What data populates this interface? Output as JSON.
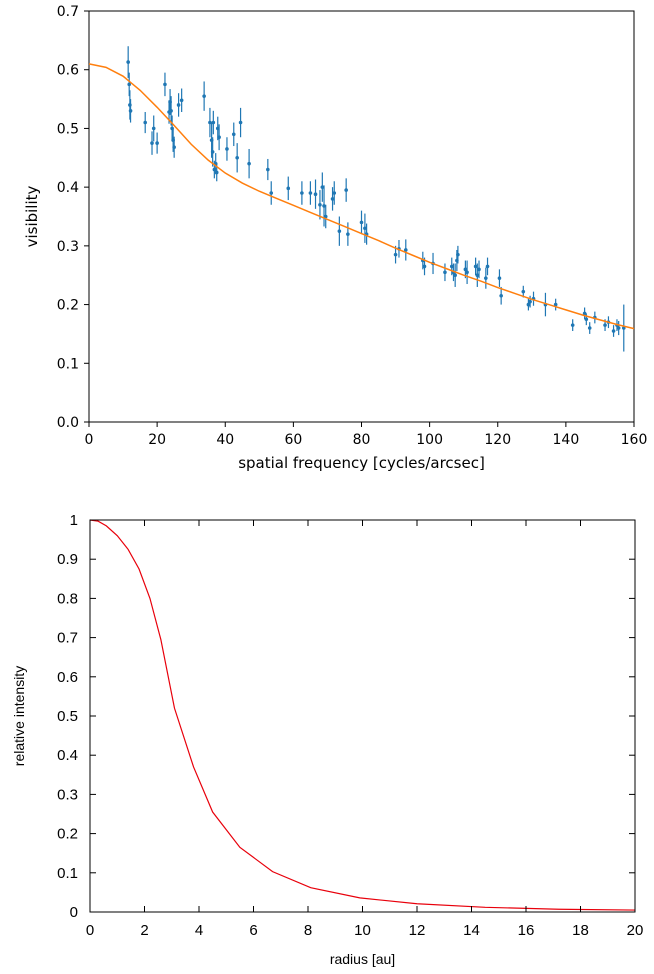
{
  "chart_data": [
    {
      "type": "scatter",
      "xlabel": "spatial frequency [cycles/arcsec]",
      "ylabel": "visibility",
      "xlim": [
        0,
        160
      ],
      "ylim": [
        0,
        0.7
      ],
      "x_ticks": [
        "0",
        "20",
        "40",
        "60",
        "80",
        "100",
        "120",
        "140",
        "160"
      ],
      "y_ticks": [
        "0.0",
        "0.1",
        "0.2",
        "0.3",
        "0.4",
        "0.5",
        "0.6",
        "0.7"
      ],
      "grid": false,
      "colors": {
        "points": "#1f77b4",
        "model": "#ff7f0e"
      },
      "series": [
        {
          "kind": "errorbar",
          "points": [
            [
              11.5,
              0.613,
              0.027
            ],
            [
              11.8,
              0.575,
              0.02
            ],
            [
              12.0,
              0.54,
              0.025
            ],
            [
              12.2,
              0.53,
              0.02
            ],
            [
              16.5,
              0.51,
              0.018
            ],
            [
              18.5,
              0.475,
              0.02
            ],
            [
              19.0,
              0.5,
              0.022
            ],
            [
              20.0,
              0.475,
              0.018
            ],
            [
              22.3,
              0.575,
              0.02
            ],
            [
              23.5,
              0.528,
              0.02
            ],
            [
              23.8,
              0.545,
              0.022
            ],
            [
              24.1,
              0.53,
              0.025
            ],
            [
              24.4,
              0.5,
              0.022
            ],
            [
              24.7,
              0.48,
              0.02
            ],
            [
              25.0,
              0.468,
              0.018
            ],
            [
              26.3,
              0.54,
              0.02
            ],
            [
              27.2,
              0.548,
              0.02
            ],
            [
              33.8,
              0.555,
              0.025
            ],
            [
              35.5,
              0.51,
              0.025
            ],
            [
              36.0,
              0.48,
              0.03
            ],
            [
              36.3,
              0.46,
              0.025
            ],
            [
              36.5,
              0.51,
              0.02
            ],
            [
              36.8,
              0.43,
              0.015
            ],
            [
              37.2,
              0.44,
              0.018
            ],
            [
              37.5,
              0.425,
              0.015
            ],
            [
              37.8,
              0.5,
              0.02
            ],
            [
              38.2,
              0.485,
              0.022
            ],
            [
              40.5,
              0.465,
              0.02
            ],
            [
              42.5,
              0.49,
              0.02
            ],
            [
              43.5,
              0.45,
              0.025
            ],
            [
              44.5,
              0.51,
              0.025
            ],
            [
              47.0,
              0.44,
              0.025
            ],
            [
              52.5,
              0.43,
              0.018
            ],
            [
              53.5,
              0.39,
              0.02
            ],
            [
              58.5,
              0.398,
              0.02
            ],
            [
              62.5,
              0.39,
              0.02
            ],
            [
              65.0,
              0.39,
              0.02
            ],
            [
              66.5,
              0.388,
              0.025
            ],
            [
              67.8,
              0.37,
              0.025
            ],
            [
              68.5,
              0.4,
              0.025
            ],
            [
              69.0,
              0.368,
              0.035
            ],
            [
              69.5,
              0.35,
              0.02
            ],
            [
              71.5,
              0.38,
              0.02
            ],
            [
              72.0,
              0.39,
              0.02
            ],
            [
              73.5,
              0.325,
              0.025
            ],
            [
              75.5,
              0.395,
              0.02
            ],
            [
              76.0,
              0.32,
              0.02
            ],
            [
              80.0,
              0.34,
              0.02
            ],
            [
              81.0,
              0.33,
              0.025
            ],
            [
              81.5,
              0.32,
              0.018
            ],
            [
              90.0,
              0.285,
              0.015
            ],
            [
              91.0,
              0.295,
              0.015
            ],
            [
              93.0,
              0.293,
              0.018
            ],
            [
              98.0,
              0.275,
              0.015
            ],
            [
              98.5,
              0.265,
              0.015
            ],
            [
              101.0,
              0.27,
              0.018
            ],
            [
              104.5,
              0.255,
              0.015
            ],
            [
              106.5,
              0.265,
              0.015
            ],
            [
              107.0,
              0.255,
              0.015
            ],
            [
              107.5,
              0.25,
              0.02
            ],
            [
              108.0,
              0.275,
              0.018
            ],
            [
              108.3,
              0.285,
              0.015
            ],
            [
              110.5,
              0.26,
              0.015
            ],
            [
              111.0,
              0.255,
              0.02
            ],
            [
              113.5,
              0.265,
              0.015
            ],
            [
              114.0,
              0.25,
              0.02
            ],
            [
              114.5,
              0.26,
              0.015
            ],
            [
              116.5,
              0.245,
              0.018
            ],
            [
              117.0,
              0.265,
              0.015
            ],
            [
              120.5,
              0.245,
              0.015
            ],
            [
              121.0,
              0.215,
              0.015
            ],
            [
              127.5,
              0.222,
              0.01
            ],
            [
              129.0,
              0.2,
              0.01
            ],
            [
              129.5,
              0.205,
              0.01
            ],
            [
              130.5,
              0.21,
              0.012
            ],
            [
              134.0,
              0.2,
              0.02
            ],
            [
              137.0,
              0.2,
              0.01
            ],
            [
              142.0,
              0.165,
              0.01
            ],
            [
              145.5,
              0.185,
              0.01
            ],
            [
              146.0,
              0.175,
              0.01
            ],
            [
              147.0,
              0.16,
              0.01
            ],
            [
              148.5,
              0.178,
              0.01
            ],
            [
              151.5,
              0.165,
              0.01
            ],
            [
              152.5,
              0.17,
              0.01
            ],
            [
              154.0,
              0.155,
              0.01
            ],
            [
              155.0,
              0.165,
              0.01
            ],
            [
              155.5,
              0.16,
              0.012
            ],
            [
              157.0,
              0.16,
              0.04
            ]
          ]
        },
        {
          "kind": "line",
          "x": [
            0,
            5,
            10,
            15,
            20,
            25,
            30,
            35,
            40,
            45,
            50,
            55,
            60,
            65,
            70,
            75,
            80,
            85,
            90,
            95,
            100,
            105,
            110,
            115,
            120,
            125,
            130,
            135,
            140,
            145,
            150,
            155,
            160
          ],
          "y": [
            0.61,
            0.604,
            0.589,
            0.565,
            0.536,
            0.505,
            0.473,
            0.446,
            0.424,
            0.407,
            0.393,
            0.381,
            0.369,
            0.357,
            0.345,
            0.333,
            0.321,
            0.309,
            0.296,
            0.284,
            0.272,
            0.261,
            0.25,
            0.24,
            0.229,
            0.219,
            0.209,
            0.2,
            0.191,
            0.182,
            0.174,
            0.166,
            0.159
          ]
        }
      ]
    },
    {
      "type": "line",
      "xlabel": "radius [au]",
      "ylabel": "relative intensity",
      "xlim": [
        0,
        20
      ],
      "ylim": [
        0,
        1
      ],
      "x_ticks": [
        "0",
        "2",
        "4",
        "6",
        "8",
        "10",
        "12",
        "14",
        "16",
        "18",
        "20"
      ],
      "y_ticks": [
        "0",
        "0.1",
        "0.2",
        "0.3",
        "0.4",
        "0.5",
        "0.6",
        "0.7",
        "0.8",
        "0.9",
        "1"
      ],
      "grid": false,
      "colors": {
        "line": "#e8000b"
      },
      "series": [
        {
          "x": [
            0,
            0.3,
            0.6,
            1.0,
            1.4,
            1.8,
            2.2,
            2.6,
            3.1,
            3.8,
            4.5,
            5.5,
            6.7,
            8.1,
            9.9,
            12.0,
            14.5,
            17.2,
            20.0
          ],
          "y": [
            1.0,
            0.997,
            0.985,
            0.96,
            0.925,
            0.875,
            0.8,
            0.695,
            0.52,
            0.37,
            0.255,
            0.165,
            0.103,
            0.062,
            0.036,
            0.021,
            0.012,
            0.007,
            0.005
          ]
        }
      ]
    }
  ]
}
